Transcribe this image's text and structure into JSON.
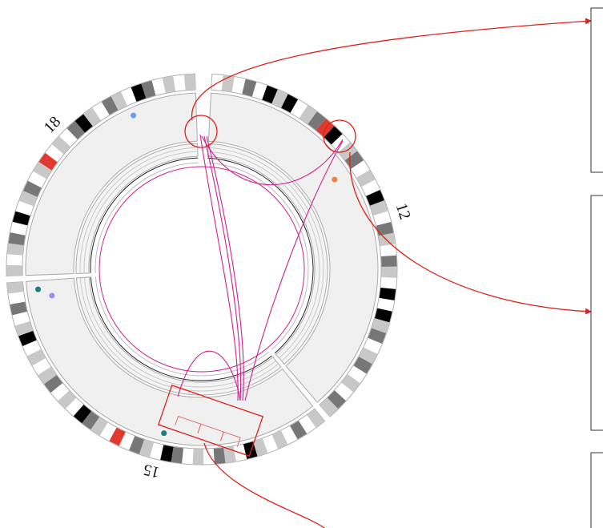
{
  "chromosomes": [
    {
      "id": "chr12",
      "label": "12"
    },
    {
      "id": "chr15",
      "label": "15"
    },
    {
      "id": "chr18",
      "label": "18"
    }
  ],
  "colors": {
    "band_dark": "#000000",
    "band_mid": "#777777",
    "band_light": "#c8c8c8",
    "centromere": "#e03a2f",
    "track_bg": "#f0f0f0",
    "track_line": "#aaaaaa",
    "link": "#d02090",
    "highlight": "#e0201a",
    "point_blue": "#6a9ee8",
    "point_orange": "#e8844a",
    "point_teal": "#237a7a",
    "point_purple": "#9a8ff0"
  },
  "highlights": [
    {
      "id": "zoom-upper-left",
      "shape": "circle"
    },
    {
      "id": "zoom-upper-right",
      "shape": "circle"
    },
    {
      "id": "zoom-bottom",
      "shape": "rectangle"
    }
  ],
  "side_panels": [
    {
      "id": "panel-top"
    },
    {
      "id": "panel-middle"
    },
    {
      "id": "panel-bottom"
    }
  ]
}
